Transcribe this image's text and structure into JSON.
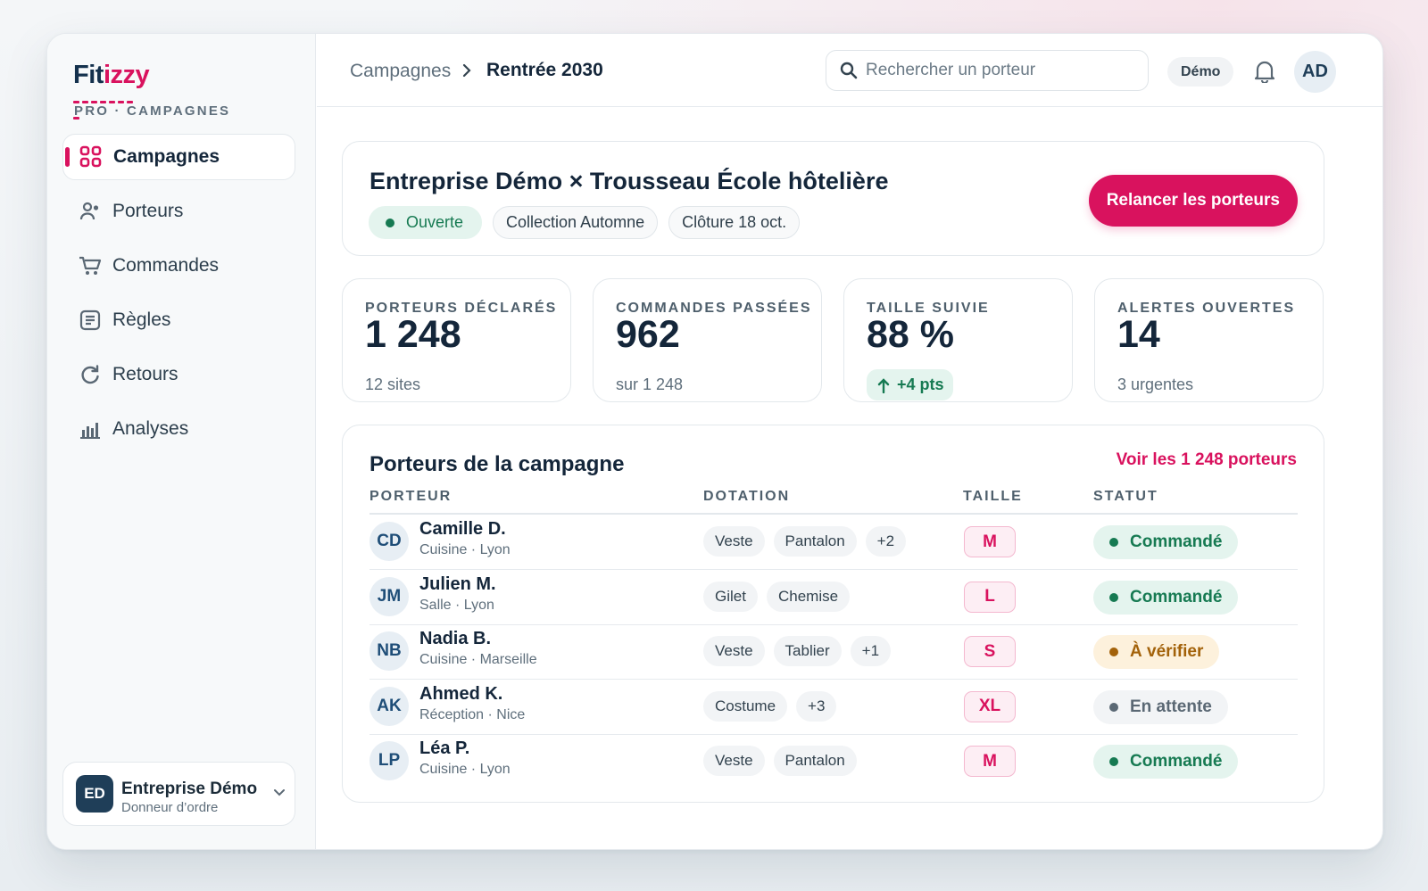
{
  "brand": {
    "logo_part1": "Fit",
    "logo_part2": "izzy",
    "subtitle": "PRO · CAMPAGNES"
  },
  "sidebar": {
    "items": [
      {
        "label": "Campagnes",
        "icon": "grid-icon",
        "active": true
      },
      {
        "label": "Porteurs",
        "icon": "users-icon",
        "active": false
      },
      {
        "label": "Commandes",
        "icon": "cart-icon",
        "active": false
      },
      {
        "label": "Règles",
        "icon": "rules-icon",
        "active": false
      },
      {
        "label": "Retours",
        "icon": "return-icon",
        "active": false
      },
      {
        "label": "Analyses",
        "icon": "bar-chart-icon",
        "active": false
      }
    ],
    "org": {
      "initials": "ED",
      "name": "Entreprise Démo",
      "role": "Donneur d’ordre"
    }
  },
  "header": {
    "breadcrumb": {
      "parent": "Campagnes",
      "current": "Rentrée 2030"
    },
    "search_placeholder": "Rechercher un porteur",
    "demo_label": "Démo",
    "user_initials": "AD"
  },
  "campaign": {
    "title": "Entreprise Démo × Trousseau École hôtelière",
    "status": "Ouverte",
    "collection": "Collection Automne",
    "closing": "Clôture 18 oct.",
    "action_label": "Relancer les porteurs"
  },
  "stats": [
    {
      "label": "PORTEURS DÉCLARÉS",
      "value": "1 248",
      "sub": "12 sites"
    },
    {
      "label": "COMMANDES PASSÉES",
      "value": "962",
      "sub": "sur 1 248"
    },
    {
      "label": "TAILLE SUIVIE",
      "value": "88 %",
      "trend": "+4 pts"
    },
    {
      "label": "ALERTES OUVERTES",
      "value": "14",
      "sub": "3 urgentes"
    }
  ],
  "table": {
    "title": "Porteurs de la campagne",
    "link_label": "Voir les 1 248 porteurs",
    "columns": [
      "PORTEUR",
      "DOTATION",
      "TAILLE",
      "STATUT"
    ],
    "rows": [
      {
        "initials": "CD",
        "name": "Camille D.",
        "sub": "Cuisine · Lyon",
        "items": [
          "Veste",
          "Pantalon",
          "+2"
        ],
        "size": "M",
        "status": "Commandé",
        "status_kind": "ok"
      },
      {
        "initials": "JM",
        "name": "Julien M.",
        "sub": "Salle · Lyon",
        "items": [
          "Gilet",
          "Chemise"
        ],
        "size": "L",
        "status": "Commandé",
        "status_kind": "ok"
      },
      {
        "initials": "NB",
        "name": "Nadia B.",
        "sub": "Cuisine · Marseille",
        "items": [
          "Veste",
          "Tablier",
          "+1"
        ],
        "size": "S",
        "status": "À vérifier",
        "status_kind": "warn"
      },
      {
        "initials": "AK",
        "name": "Ahmed K.",
        "sub": "Réception · Nice",
        "items": [
          "Costume",
          "+3"
        ],
        "size": "XL",
        "status": "En attente",
        "status_kind": "wait"
      },
      {
        "initials": "LP",
        "name": "Léa P.",
        "sub": "Cuisine · Lyon",
        "items": [
          "Veste",
          "Pantalon"
        ],
        "size": "M",
        "status": "Commandé",
        "status_kind": "ok"
      }
    ]
  },
  "colors": {
    "accent": "#d9125e",
    "navy": "#14314d",
    "status_ok_bg": "#e4f4ee",
    "status_ok_fg": "#167a52",
    "status_warn_bg": "#fdf1dc",
    "status_warn_fg": "#a3620a",
    "status_wait_bg": "#f2f4f6",
    "status_wait_fg": "#5a6874"
  }
}
